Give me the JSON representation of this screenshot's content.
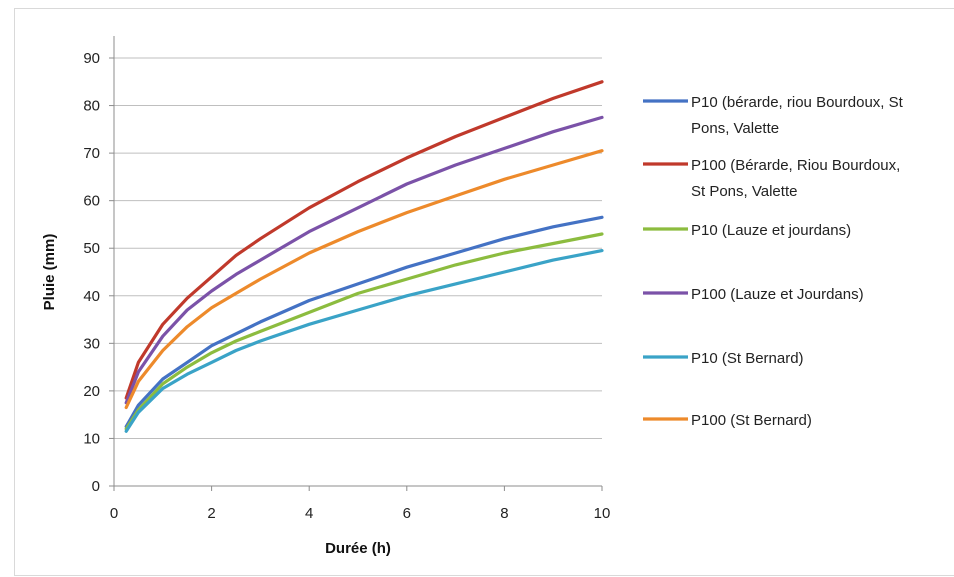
{
  "chart_data": {
    "type": "line",
    "title": "",
    "xlabel": "Durée (h)",
    "ylabel": "Pluie (mm)",
    "xlim": [
      0,
      10
    ],
    "ylim": [
      0,
      90
    ],
    "xticks": [
      0,
      2,
      4,
      6,
      8,
      10
    ],
    "yticks": [
      0,
      10,
      20,
      30,
      40,
      50,
      60,
      70,
      80,
      90
    ],
    "grid": "horizontal",
    "legend_position": "right",
    "series": [
      {
        "name_lines": [
          "P10 (bérarde, riou Bourdoux, St",
          "Pons, Valette"
        ],
        "color": "#4472c4",
        "x": [
          0.25,
          0.5,
          1,
          1.5,
          2,
          2.5,
          3,
          4,
          5,
          6,
          7,
          8,
          9,
          10
        ],
        "y": [
          12.5,
          17,
          22.5,
          26,
          29.5,
          32,
          34.5,
          39,
          42.5,
          46,
          49,
          52,
          54.5,
          56.5
        ]
      },
      {
        "name_lines": [
          "P100 (Bérarde, Riou Bourdoux,",
          "St Pons, Valette"
        ],
        "color": "#c0392b",
        "x": [
          0.25,
          0.5,
          1,
          1.5,
          2,
          2.5,
          3,
          4,
          5,
          6,
          7,
          8,
          9,
          10
        ],
        "y": [
          18.5,
          26,
          34,
          39.5,
          44,
          48.5,
          52,
          58.5,
          64,
          69,
          73.5,
          77.5,
          81.5,
          85
        ]
      },
      {
        "name_lines": [
          "P10 (Lauze et jourdans)"
        ],
        "color": "#8cbc3f",
        "x": [
          0.25,
          0.5,
          1,
          1.5,
          2,
          2.5,
          3,
          4,
          5,
          6,
          7,
          8,
          9,
          10
        ],
        "y": [
          12,
          16,
          21.5,
          25,
          28,
          30.5,
          32.5,
          36.5,
          40.5,
          43.5,
          46.5,
          49,
          51,
          53
        ]
      },
      {
        "name_lines": [
          "P100 (Lauze et Jourdans)"
        ],
        "color": "#7b52a8",
        "x": [
          0.25,
          0.5,
          1,
          1.5,
          2,
          2.5,
          3,
          4,
          5,
          6,
          7,
          8,
          9,
          10
        ],
        "y": [
          17.5,
          24,
          31.5,
          37,
          41,
          44.5,
          47.5,
          53.5,
          58.5,
          63.5,
          67.5,
          71,
          74.5,
          77.5
        ]
      },
      {
        "name_lines": [
          "P10 (St Bernard)"
        ],
        "color": "#3aa3c7",
        "x": [
          0.25,
          0.5,
          1,
          1.5,
          2,
          2.5,
          3,
          4,
          5,
          6,
          7,
          8,
          9,
          10
        ],
        "y": [
          11.5,
          15.5,
          20.5,
          23.5,
          26,
          28.5,
          30.5,
          34,
          37,
          40,
          42.5,
          45,
          47.5,
          49.5
        ]
      },
      {
        "name_lines": [
          "P100 (St Bernard)"
        ],
        "color": "#ed8a2b",
        "x": [
          0.25,
          0.5,
          1,
          1.5,
          2,
          2.5,
          3,
          4,
          5,
          6,
          7,
          8,
          9,
          10
        ],
        "y": [
          16.5,
          22,
          28.5,
          33.5,
          37.5,
          40.5,
          43.5,
          49,
          53.5,
          57.5,
          61,
          64.5,
          67.5,
          70.5
        ]
      }
    ]
  }
}
